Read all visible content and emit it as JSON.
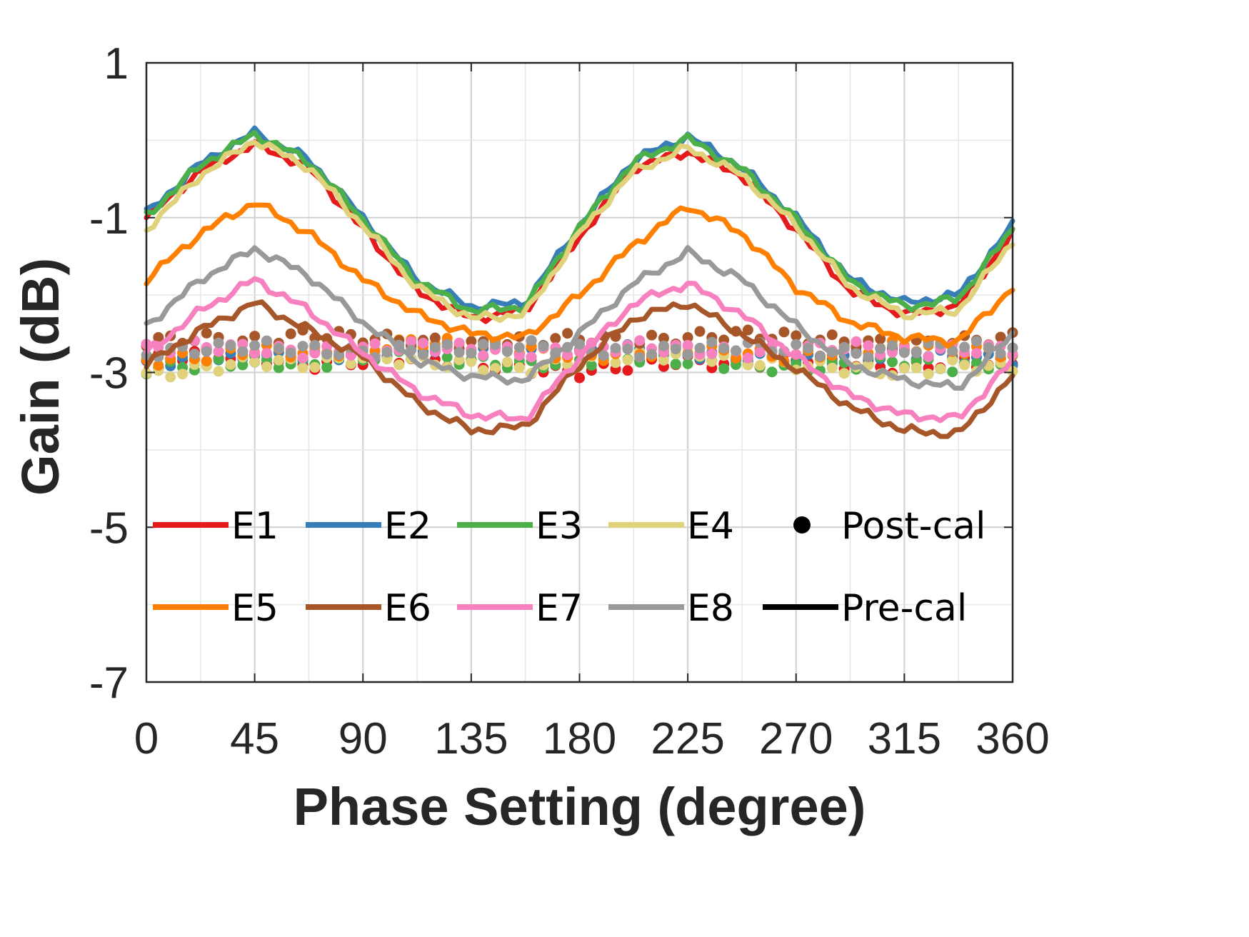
{
  "chart_data": {
    "type": "line",
    "title": "",
    "xlabel": "Phase Setting (degree)",
    "ylabel": "Gain (dB)",
    "xlim": [
      0,
      360
    ],
    "ylim": [
      -7,
      1
    ],
    "xticks": [
      0,
      45,
      90,
      135,
      180,
      225,
      270,
      315,
      360
    ],
    "yticks": [
      1,
      -1,
      -3,
      -5,
      -7
    ],
    "grid": true,
    "x": [
      0,
      22.5,
      45,
      67.5,
      90,
      112.5,
      135,
      157.5,
      180,
      202.5,
      225,
      247.5,
      270,
      292.5,
      315,
      337.5,
      360
    ],
    "series": [
      {
        "name": "E1",
        "color": "#e41a1c",
        "style": "Pre-cal",
        "values": [
          -1.0,
          -0.4,
          -0.05,
          -0.35,
          -1.15,
          -1.95,
          -2.3,
          -2.2,
          -1.25,
          -0.35,
          -0.15,
          -0.45,
          -1.15,
          -1.95,
          -2.25,
          -2.15,
          -1.2
        ]
      },
      {
        "name": "E2",
        "color": "#377eb8",
        "style": "Pre-cal",
        "values": [
          -0.95,
          -0.3,
          0.1,
          -0.25,
          -1.0,
          -1.8,
          -2.15,
          -2.1,
          -1.1,
          -0.25,
          0.05,
          -0.35,
          -1.0,
          -1.8,
          -2.1,
          -2.0,
          -1.1
        ]
      },
      {
        "name": "E3",
        "color": "#4daf4a",
        "style": "Pre-cal",
        "values": [
          -0.98,
          -0.32,
          0.08,
          -0.27,
          -1.02,
          -1.82,
          -2.2,
          -2.15,
          -1.12,
          -0.28,
          0.02,
          -0.37,
          -1.03,
          -1.83,
          -2.15,
          -2.05,
          -1.15
        ]
      },
      {
        "name": "E4",
        "color": "#e0d27a",
        "style": "Pre-cal",
        "values": [
          -1.15,
          -0.45,
          0.0,
          -0.35,
          -1.1,
          -1.9,
          -2.3,
          -2.25,
          -1.2,
          -0.4,
          -0.1,
          -0.45,
          -1.1,
          -1.9,
          -2.25,
          -2.2,
          -1.3
        ]
      },
      {
        "name": "E5",
        "color": "#ff7f00",
        "style": "Pre-cal",
        "values": [
          -1.8,
          -1.2,
          -0.8,
          -1.2,
          -1.8,
          -2.25,
          -2.5,
          -2.55,
          -2.0,
          -1.35,
          -0.85,
          -1.2,
          -1.9,
          -2.35,
          -2.55,
          -2.6,
          -1.9
        ]
      },
      {
        "name": "E6",
        "color": "#a65628",
        "style": "Pre-cal",
        "values": [
          -2.9,
          -2.45,
          -2.1,
          -2.45,
          -2.8,
          -3.4,
          -3.75,
          -3.7,
          -2.9,
          -2.3,
          -2.1,
          -2.5,
          -2.95,
          -3.45,
          -3.75,
          -3.8,
          -3.05
        ]
      },
      {
        "name": "E7",
        "color": "#f781bf",
        "style": "Pre-cal",
        "values": [
          -2.75,
          -2.2,
          -1.8,
          -2.2,
          -2.75,
          -3.25,
          -3.55,
          -3.6,
          -2.8,
          -2.1,
          -1.85,
          -2.25,
          -2.8,
          -3.3,
          -3.55,
          -3.6,
          -2.85
        ]
      },
      {
        "name": "E8",
        "color": "#999999",
        "style": "Pre-cal",
        "values": [
          -2.4,
          -1.8,
          -1.4,
          -1.75,
          -2.35,
          -2.85,
          -3.05,
          -3.1,
          -2.5,
          -1.85,
          -1.45,
          -1.8,
          -2.4,
          -2.9,
          -3.1,
          -3.2,
          -2.5
        ]
      },
      {
        "name": "E1 post",
        "color": "#e41a1c",
        "style": "Post-cal",
        "values": [
          -2.85,
          -2.75,
          -2.8,
          -2.9,
          -2.85,
          -2.8,
          -2.9,
          -2.95,
          -3.0,
          -2.9,
          -2.85,
          -2.9,
          -2.8,
          -2.9,
          -2.95,
          -2.85,
          -2.9
        ]
      },
      {
        "name": "E2 post",
        "color": "#377eb8",
        "style": "Post-cal",
        "values": [
          -2.9,
          -2.85,
          -2.8,
          -2.8,
          -2.75,
          -2.7,
          -2.65,
          -2.7,
          -2.75,
          -2.7,
          -2.75,
          -2.8,
          -2.85,
          -2.8,
          -2.75,
          -2.8,
          -2.85
        ]
      },
      {
        "name": "E3 post",
        "color": "#4daf4a",
        "style": "Post-cal",
        "values": [
          -2.95,
          -2.9,
          -2.85,
          -2.9,
          -2.8,
          -2.75,
          -2.85,
          -2.9,
          -2.85,
          -2.8,
          -2.85,
          -2.9,
          -2.95,
          -2.9,
          -2.85,
          -2.95,
          -2.85
        ]
      },
      {
        "name": "E4 post",
        "color": "#e0d27a",
        "style": "Post-cal",
        "values": [
          -3.05,
          -2.95,
          -2.85,
          -2.9,
          -2.8,
          -2.85,
          -2.9,
          -2.95,
          -2.85,
          -2.8,
          -2.75,
          -2.85,
          -2.9,
          -2.95,
          -3.0,
          -2.9,
          -2.95
        ]
      },
      {
        "name": "E5 post",
        "color": "#ff7f00",
        "style": "Post-cal",
        "values": [
          -2.85,
          -2.8,
          -2.7,
          -2.75,
          -2.7,
          -2.6,
          -2.65,
          -2.7,
          -2.8,
          -2.75,
          -2.7,
          -2.75,
          -2.8,
          -2.7,
          -2.65,
          -2.7,
          -2.75
        ]
      },
      {
        "name": "E6 post",
        "color": "#a65628",
        "style": "Post-cal",
        "values": [
          -2.6,
          -2.55,
          -2.6,
          -2.5,
          -2.55,
          -2.6,
          -2.65,
          -2.6,
          -2.55,
          -2.6,
          -2.55,
          -2.5,
          -2.55,
          -2.6,
          -2.65,
          -2.6,
          -2.55
        ]
      },
      {
        "name": "E7 post",
        "color": "#f781bf",
        "style": "Post-cal",
        "values": [
          -2.7,
          -2.65,
          -2.7,
          -2.75,
          -2.7,
          -2.65,
          -2.7,
          -2.75,
          -2.7,
          -2.65,
          -2.7,
          -2.75,
          -2.7,
          -2.65,
          -2.75,
          -2.7,
          -2.7
        ]
      },
      {
        "name": "E8 post",
        "color": "#999999",
        "style": "Post-cal",
        "values": [
          -2.75,
          -2.7,
          -2.65,
          -2.7,
          -2.75,
          -2.7,
          -2.7,
          -2.65,
          -2.7,
          -2.75,
          -2.7,
          -2.65,
          -2.7,
          -2.75,
          -2.7,
          -2.65,
          -2.7
        ]
      }
    ],
    "legend": {
      "placement": "bottom-inside",
      "entries": [
        {
          "label": "E1",
          "color": "#e41a1c",
          "kind": "line"
        },
        {
          "label": "E2",
          "color": "#377eb8",
          "kind": "line"
        },
        {
          "label": "E3",
          "color": "#4daf4a",
          "kind": "line"
        },
        {
          "label": "E4",
          "color": "#e0d27a",
          "kind": "line"
        },
        {
          "label": "Post-cal",
          "color": "#000000",
          "kind": "dot"
        },
        {
          "label": "E5",
          "color": "#ff7f00",
          "kind": "line"
        },
        {
          "label": "E6",
          "color": "#a65628",
          "kind": "line"
        },
        {
          "label": "E7",
          "color": "#f781bf",
          "kind": "line"
        },
        {
          "label": "E8",
          "color": "#999999",
          "kind": "line"
        },
        {
          "label": "Pre-cal",
          "color": "#000000",
          "kind": "line"
        }
      ]
    }
  }
}
